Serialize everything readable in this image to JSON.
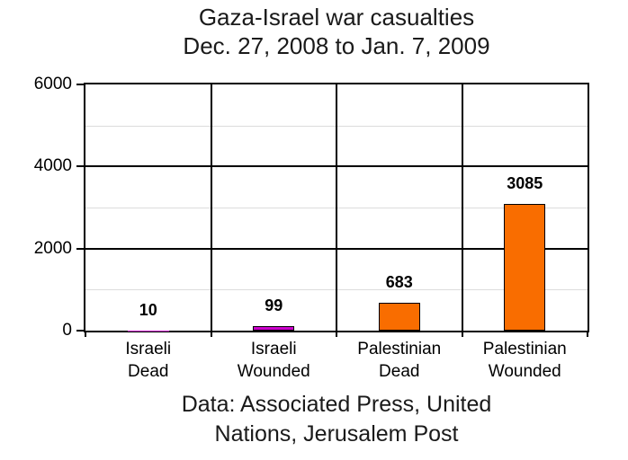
{
  "chart_data": {
    "type": "bar",
    "title": "Gaza-Israel war casualties",
    "subtitle": "Dec. 27, 2008 to Jan. 7, 2009",
    "categories": [
      "Israeli Dead",
      "Israeli Wounded",
      "Palestinian Dead",
      "Palestinian Wounded"
    ],
    "category_lines": [
      [
        "Israeli",
        "Dead"
      ],
      [
        "Israeli",
        "Wounded"
      ],
      [
        "Palestinian",
        "Dead"
      ],
      [
        "Palestinian",
        "Wounded"
      ]
    ],
    "values": [
      10,
      99,
      683,
      3085
    ],
    "value_labels": [
      "10",
      "99",
      "683",
      "3085"
    ],
    "bar_colors": [
      "#CC00CC",
      "#CC00CC",
      "#F96D00",
      "#F96D00"
    ],
    "bar_border_color": "#000000",
    "ylim": [
      0,
      6000
    ],
    "yticks": [
      0,
      2000,
      4000,
      6000
    ],
    "ytick_labels": [
      "0",
      "2000",
      "4000",
      "6000"
    ],
    "minor_yticks": [
      1000,
      3000,
      5000
    ],
    "grid": true,
    "legend": false,
    "frame_color": "#000000",
    "minor_grid_color": "#DCDCDC",
    "background": "#FFFFFF",
    "text_color": "#000000",
    "caption": "Data: Associated Press, United Nations, Jerusalem Post",
    "caption_lines": [
      "Data: Associated Press, United",
      "Nations, Jerusalem Post"
    ]
  }
}
